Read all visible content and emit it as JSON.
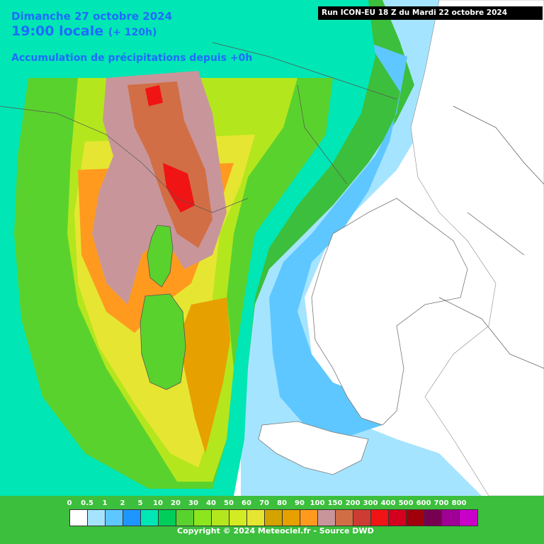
{
  "header": {
    "date": "Dimanche 27 octobre 2024",
    "time": "19:00 locale",
    "offset": "(+ 120h)",
    "accumulation": "Accumulation de précipitations depuis +0h"
  },
  "run_info": "Run ICON-EU 18 Z du Mardi 22 octobre 2024",
  "legend": {
    "labels": [
      "0",
      "0.5",
      "1",
      "2",
      "5",
      "10",
      "20",
      "30",
      "40",
      "50",
      "60",
      "70",
      "80",
      "90",
      "100",
      "150",
      "200",
      "300",
      "400",
      "500",
      "600",
      "700",
      "800"
    ],
    "colors": [
      "#ffffff",
      "#a5e4ff",
      "#5fc7ff",
      "#1e96ff",
      "#00e6b4",
      "#00cd5a",
      "#5ad22d",
      "#8ce61e",
      "#b4e61e",
      "#d2eb23",
      "#e6e632",
      "#d4a300",
      "#e6a000",
      "#ff9a1e",
      "#c8969a",
      "#d26e46",
      "#cd3c32",
      "#f01414",
      "#d2001e",
      "#a0000a",
      "#780050",
      "#a00096",
      "#c800c8"
    ]
  },
  "copyright": "Copyright © 2024 Meteociel.fr - Source DWD"
}
